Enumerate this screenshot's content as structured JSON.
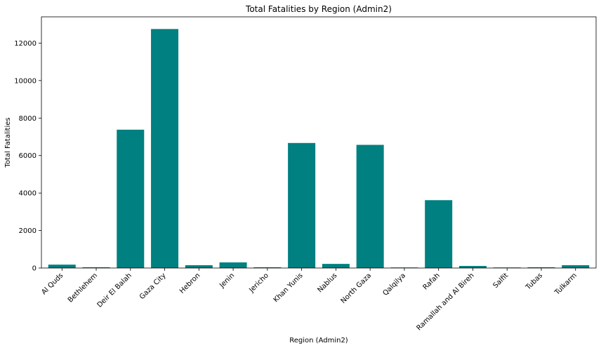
{
  "chart_data": {
    "type": "bar",
    "title": "Total Fatalities by Region (Admin2)",
    "xlabel": "Region (Admin2)",
    "ylabel": "Total Fatalities",
    "categories": [
      "Al Quds",
      "Bethlehem",
      "Deir El Balah",
      "Gaza City",
      "Hebron",
      "Jenin",
      "Jericho",
      "Khan Yunis",
      "Nablus",
      "North Gaza",
      "Qalqilya",
      "Rafah",
      "Ramallah and Al Bireh",
      "Salfit",
      "Tubas",
      "Tulkarm"
    ],
    "values": [
      180,
      40,
      7380,
      12750,
      150,
      300,
      40,
      6670,
      220,
      6570,
      30,
      3620,
      110,
      30,
      40,
      150
    ],
    "yticks": [
      "0",
      "2000",
      "4000",
      "6000",
      "8000",
      "10000",
      "12000"
    ],
    "ylim": [
      0,
      13400
    ],
    "bar_color": "#008080",
    "grid": false
  }
}
